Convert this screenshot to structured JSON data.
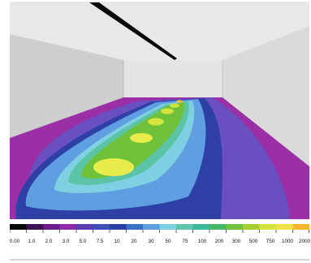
{
  "scale": {
    "labels": [
      "0.00",
      "1.0",
      "2.0",
      "3.0",
      "5.0",
      "7.5",
      "10",
      "20",
      "30",
      "50",
      "75",
      "100",
      "200",
      "300",
      "500",
      "750",
      "1000",
      "2000"
    ],
    "colors": [
      "#0a0a0a",
      "#3c1252",
      "#6a1b8c",
      "#8e2aa8",
      "#5b3db3",
      "#3e50b8",
      "#2c3fa2",
      "#3a6fca",
      "#5d9fe0",
      "#7ed0e3",
      "#5fc6aa",
      "#3cb89a",
      "#43b865",
      "#72c23e",
      "#a6cf33",
      "#d7e33c",
      "#f2e24a",
      "#f7b731"
    ]
  },
  "scene": {
    "ceiling": "#e8e8e8",
    "left_wall": "#cfcfcf",
    "right_wall": "#d9d9d9",
    "back_wall": "#e2e2e2",
    "luminaire": "#000000"
  }
}
